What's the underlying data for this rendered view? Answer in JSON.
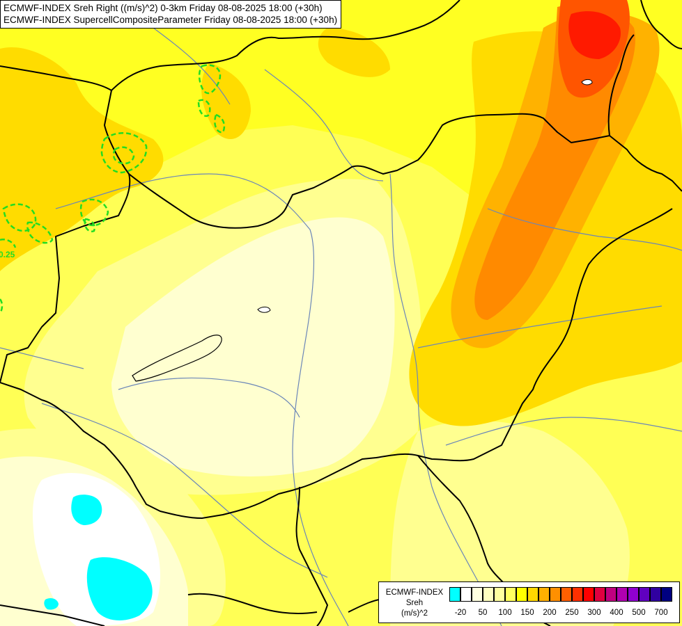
{
  "header": {
    "line1": "ECMWF-INDEX Sreh Right ((m/s)^2) 0-3km Friday 08-08-2025 18:00 (+30h)",
    "line2": "ECMWF-INDEX SupercellCompositeParameter Friday 08-08-2025 18:00 (+30h)"
  },
  "contour_label": "0.25",
  "legend": {
    "line1": "ECMWF-INDEX",
    "line2": "Sreh",
    "line3": "(m/s)^2",
    "colors": [
      "#00ffff",
      "#ffffff",
      "#ffffe0",
      "#ffffc0",
      "#ffffa0",
      "#ffff60",
      "#ffff00",
      "#ffd800",
      "#ffb000",
      "#ff9000",
      "#ff6000",
      "#ff3000",
      "#ff0000",
      "#e00040",
      "#c00080",
      "#b000b0",
      "#9000d0",
      "#6000c0",
      "#3000a0",
      "#000080"
    ],
    "ticks": [
      "-20",
      "50",
      "100",
      "150",
      "200",
      "250",
      "300",
      "400",
      "500",
      "700"
    ]
  },
  "colors": {
    "very_light": "#ffffd0",
    "light": "#ffff90",
    "yellow": "#ffff33",
    "gold": "#ffdc00",
    "orange": "#ffb200",
    "deep_orange": "#ff8a00",
    "red_orange": "#ff5500",
    "red": "#ff1a00",
    "cyan": "#00ffff",
    "contour_green": "#22dd22",
    "border": "#000000",
    "river": "#6b86b8"
  }
}
